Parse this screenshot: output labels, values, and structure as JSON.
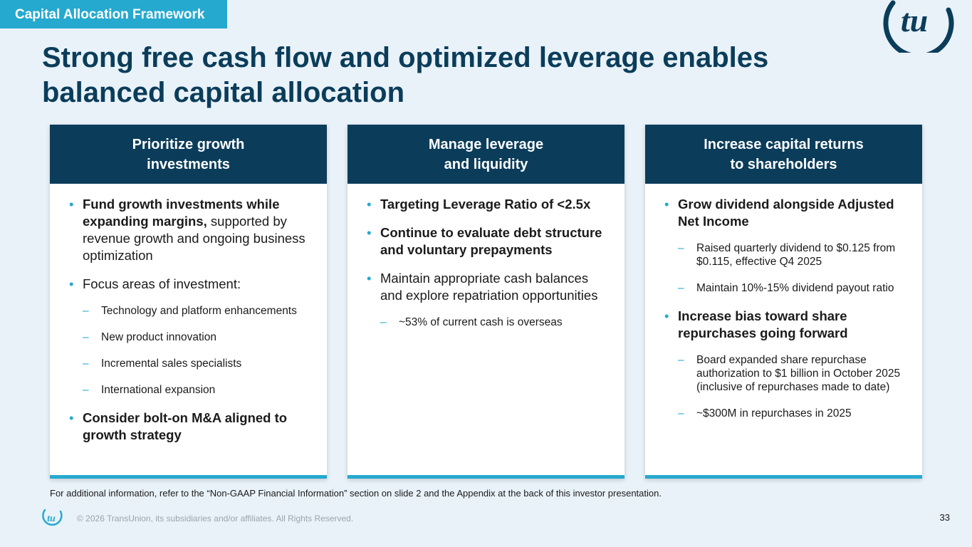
{
  "header": {
    "section_tag": "Capital Allocation Framework",
    "title": "Strong free cash flow and optimized leverage enables balanced capital allocation"
  },
  "columns": [
    {
      "heading_line1": "Prioritize growth",
      "heading_line2": "investments",
      "bullets": [
        {
          "bold": "Fund growth investments while expanding margins,",
          "rest": " supported by revenue growth and ongoing business optimization"
        },
        {
          "bold": "",
          "rest": "Focus areas of investment:"
        },
        {
          "bold": "Consider bolt-on M&A aligned to growth strategy",
          "rest": ""
        }
      ],
      "subbullets": [
        "Technology and platform enhancements",
        "New product innovation",
        "Incremental sales specialists",
        "International expansion"
      ]
    },
    {
      "heading_line1": "Manage leverage",
      "heading_line2": "and liquidity",
      "bullets": [
        {
          "bold": "Targeting Leverage Ratio of <2.5x",
          "rest": ""
        },
        {
          "bold": "Continue to evaluate debt structure and voluntary prepayments",
          "rest": ""
        },
        {
          "bold": "",
          "rest": "Maintain appropriate cash balances and explore repatriation opportunities"
        }
      ],
      "subbullets": [
        "~53% of current cash is overseas"
      ]
    },
    {
      "heading_line1": "Increase capital returns",
      "heading_line2": "to shareholders",
      "bullets": [
        {
          "bold": "Grow dividend alongside Adjusted Net Income",
          "rest": ""
        },
        {
          "bold": "Increase bias toward share repurchases going forward",
          "rest": ""
        }
      ],
      "subbullets": [
        "Raised quarterly dividend to $0.125 from $0.115, effective Q4 2025",
        "Maintain 10%-15% dividend payout ratio",
        "Board expanded share repurchase authorization to $1 billion in October 2025 (inclusive of repurchases made to date)",
        "~$300M in repurchases in 2025"
      ]
    }
  ],
  "footer": {
    "footnote": "For additional information, refer to the “Non-GAAP Financial Information” section on slide 2 and the Appendix at the back of this investor presentation.",
    "copyright": "© 2026 TransUnion, its subsidiaries and/or affiliates. All Rights Reserved.",
    "page_number": "33"
  },
  "logo": {
    "text": "tu",
    "icon": "transunion-logo-icon"
  },
  "colors": {
    "navy": "#0b3d5a",
    "accent": "#26a9cf",
    "background": "#e9f2f9"
  }
}
